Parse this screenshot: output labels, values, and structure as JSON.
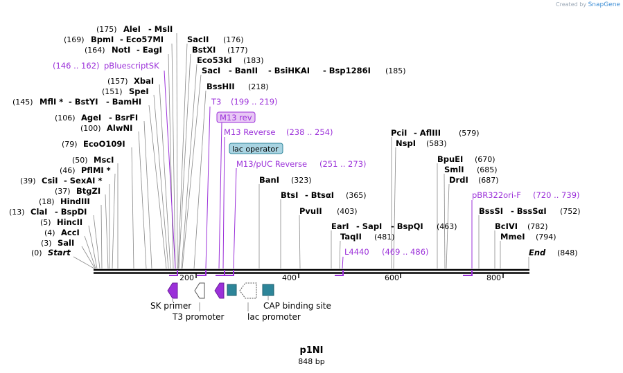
{
  "credit": {
    "prefix": "Created by",
    "brand": "SnapGene"
  },
  "map": {
    "name": "p1NI",
    "length_label": "848 bp",
    "length": 848
  },
  "ticks": [
    "200",
    "400",
    "600",
    "800"
  ],
  "sites": [
    {
      "name": "AleI",
      "pos": "(175)",
      "side": "left"
    },
    {
      "name": "- MslI",
      "side": "left"
    },
    {
      "name": "BpmI",
      "pos": "(169)",
      "side": "left"
    },
    {
      "name": "- Eco57MI",
      "side": "left"
    },
    {
      "name": "NotI",
      "pos": "(164)",
      "side": "left"
    },
    {
      "name": "- EagI",
      "side": "left"
    },
    {
      "name": "XbaI",
      "pos": "(157)",
      "side": "left"
    },
    {
      "name": "SpeI",
      "pos": "(151)",
      "side": "left"
    },
    {
      "name": "MflI *",
      "pos": "(145)",
      "side": "left"
    },
    {
      "name": "- BstYI",
      "side": "left"
    },
    {
      "name": "- BamHI",
      "side": "left"
    },
    {
      "name": "AgeI",
      "pos": "(106)",
      "side": "left"
    },
    {
      "name": "- BsrFI",
      "side": "left"
    },
    {
      "name": "AlwNI",
      "pos": "(100)",
      "side": "left"
    },
    {
      "name": "EcoO109I",
      "pos": "(79)",
      "side": "left"
    },
    {
      "name": "MscI",
      "pos": "(50)",
      "side": "left"
    },
    {
      "name": "PflMI *",
      "pos": "(46)",
      "side": "left"
    },
    {
      "name": "CsiI",
      "pos": "(39)",
      "side": "left"
    },
    {
      "name": "- SexAI *",
      "side": "left"
    },
    {
      "name": "BtgZI",
      "pos": "(37)",
      "side": "left"
    },
    {
      "name": "HindIII",
      "pos": "(18)",
      "side": "left"
    },
    {
      "name": "ClaI",
      "pos": "(13)",
      "side": "left"
    },
    {
      "name": "- BspDI",
      "side": "left"
    },
    {
      "name": "HincII",
      "pos": "(5)",
      "side": "left"
    },
    {
      "name": "AccI",
      "pos": "(4)",
      "side": "left"
    },
    {
      "name": "SalI",
      "pos": "(3)",
      "side": "left"
    },
    {
      "name": "Start",
      "pos": "(0)",
      "side": "left"
    },
    {
      "name": "SacII",
      "pos": "(176)",
      "side": "right"
    },
    {
      "name": "BstXI",
      "pos": "(177)",
      "side": "right"
    },
    {
      "name": "Eco53kI",
      "pos": "(183)",
      "side": "right"
    },
    {
      "name": "SacI",
      "pos": "(185)",
      "side": "right"
    },
    {
      "name": "- BanII",
      "side": "right"
    },
    {
      "name": "- BsiHKAI",
      "side": "right"
    },
    {
      "name": "- Bsp1286I",
      "side": "right"
    },
    {
      "name": "BssHII",
      "pos": "(218)",
      "side": "right"
    },
    {
      "name": "BanI",
      "pos": "(323)",
      "side": "right"
    },
    {
      "name": "BtsI",
      "pos": "(365)",
      "side": "right"
    },
    {
      "name": "- BtsαI",
      "side": "right"
    },
    {
      "name": "PvuII",
      "pos": "(403)",
      "side": "right"
    },
    {
      "name": "EarI",
      "pos": "(463)",
      "side": "right"
    },
    {
      "name": "- SapI",
      "side": "right"
    },
    {
      "name": "- BspQI",
      "side": "right"
    },
    {
      "name": "TaqII",
      "pos": "(481)",
      "side": "right"
    },
    {
      "name": "PciI",
      "pos": "(579)",
      "side": "right"
    },
    {
      "name": "- AflIII",
      "side": "right"
    },
    {
      "name": "NspI",
      "pos": "(583)",
      "side": "right"
    },
    {
      "name": "BpuEI",
      "pos": "(670)",
      "side": "right"
    },
    {
      "name": "SmlI",
      "pos": "(685)",
      "side": "right"
    },
    {
      "name": "DrdI",
      "pos": "(687)",
      "side": "right"
    },
    {
      "name": "BssSI",
      "pos": "(752)",
      "side": "right"
    },
    {
      "name": "- BssSαI",
      "side": "right"
    },
    {
      "name": "BcIVI",
      "pos": "(782)",
      "side": "right"
    },
    {
      "name": "MmeI",
      "pos": "(794)",
      "side": "right"
    },
    {
      "name": "End",
      "pos": "(848)",
      "side": "right"
    }
  ],
  "primers": [
    {
      "name": "pBluescriptSK",
      "range": "(146 .. 162)"
    },
    {
      "name": "T3",
      "range": "(199 .. 219)"
    },
    {
      "name": "M13 rev"
    },
    {
      "name": "M13 Reverse",
      "range": "(238 .. 254)"
    },
    {
      "name": "M13/pUC Reverse",
      "range": "(251 .. 273)"
    },
    {
      "name": "L4440",
      "range": "(469 .. 486)"
    },
    {
      "name": "pBR322ori-F",
      "range": "(720 .. 739)"
    }
  ],
  "features": [
    {
      "name": "lac operator"
    },
    {
      "name": "SK primer"
    },
    {
      "name": "T3 promoter"
    },
    {
      "name": "lac promoter"
    },
    {
      "name": "CAP binding site"
    }
  ],
  "colors": {
    "primer": "#9b30d9",
    "primer_fill": "#e8c8f5",
    "lacop_fill": "#a9d4e2",
    "cap": "#2d8599",
    "line": "#888888"
  }
}
